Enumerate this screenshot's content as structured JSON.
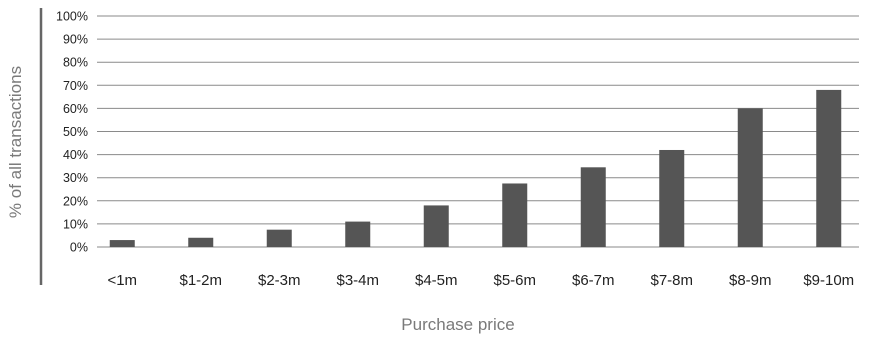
{
  "chart_data": {
    "type": "bar",
    "title": "",
    "xlabel": "Purchase price",
    "ylabel": "% of all transactions",
    "categories": [
      "<1m",
      "$1-2m",
      "$2-3m",
      "$3-4m",
      "$4-5m",
      "$5-6m",
      "$6-7m",
      "$7-8m",
      "$8-9m",
      "$9-10m"
    ],
    "values": [
      3,
      4,
      7.5,
      11,
      18,
      27.5,
      34.5,
      42,
      60,
      68
    ],
    "ylim": [
      0,
      100
    ],
    "yticks": [
      "0%",
      "10%",
      "20%",
      "30%",
      "40%",
      "50%",
      "60%",
      "70%",
      "80%",
      "90%",
      "100%"
    ],
    "grid": true,
    "legend": "none",
    "colors": {
      "bar": "#555555",
      "grid": "#8a8a8a",
      "axis": "#666666",
      "label": "#7a7a7a",
      "tick": "#222222"
    }
  }
}
